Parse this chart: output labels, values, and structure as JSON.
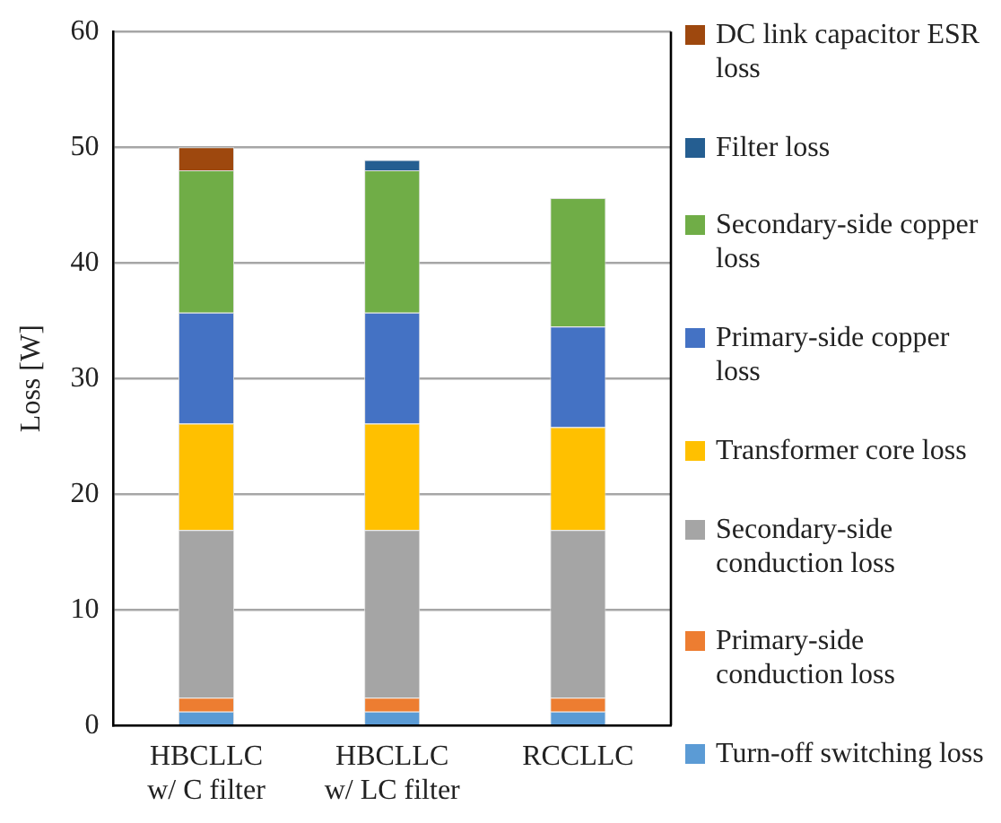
{
  "chart_data": {
    "type": "bar",
    "stacked": true,
    "ylabel": "Loss [W]",
    "categories": [
      "HBCLLC w/ C filter",
      "HBCLLC w/ LC filter",
      "RCCLLC"
    ],
    "series": [
      {
        "name": "Turn-off switching loss",
        "color": "#5b9bd5",
        "values": [
          1.2,
          1.2,
          1.2
        ]
      },
      {
        "name": "Primary-side conduction loss",
        "color": "#ed7d31",
        "values": [
          1.2,
          1.2,
          1.2
        ]
      },
      {
        "name": "Secondary-side conduction loss",
        "color": "#a5a5a5",
        "values": [
          14.5,
          14.5,
          14.5
        ]
      },
      {
        "name": "Transformer core loss",
        "color": "#ffc000",
        "values": [
          9.2,
          9.2,
          8.9
        ]
      },
      {
        "name": "Primary-side copper loss",
        "color": "#4472c4",
        "values": [
          9.6,
          9.6,
          8.7
        ]
      },
      {
        "name": "Secondary-side copper loss",
        "color": "#70ad47",
        "values": [
          12.3,
          12.3,
          11.1
        ]
      },
      {
        "name": "Filter loss",
        "color": "#255e91",
        "values": [
          null,
          0.9,
          null
        ]
      },
      {
        "name": "DC link capacitor ESR loss",
        "color": "#9e480e",
        "values": [
          2.0,
          null,
          null
        ]
      }
    ],
    "ylim": [
      0,
      60
    ],
    "yticks": [
      0,
      10,
      20,
      30,
      40,
      50,
      60
    ],
    "grid": "y",
    "legend": "right"
  }
}
